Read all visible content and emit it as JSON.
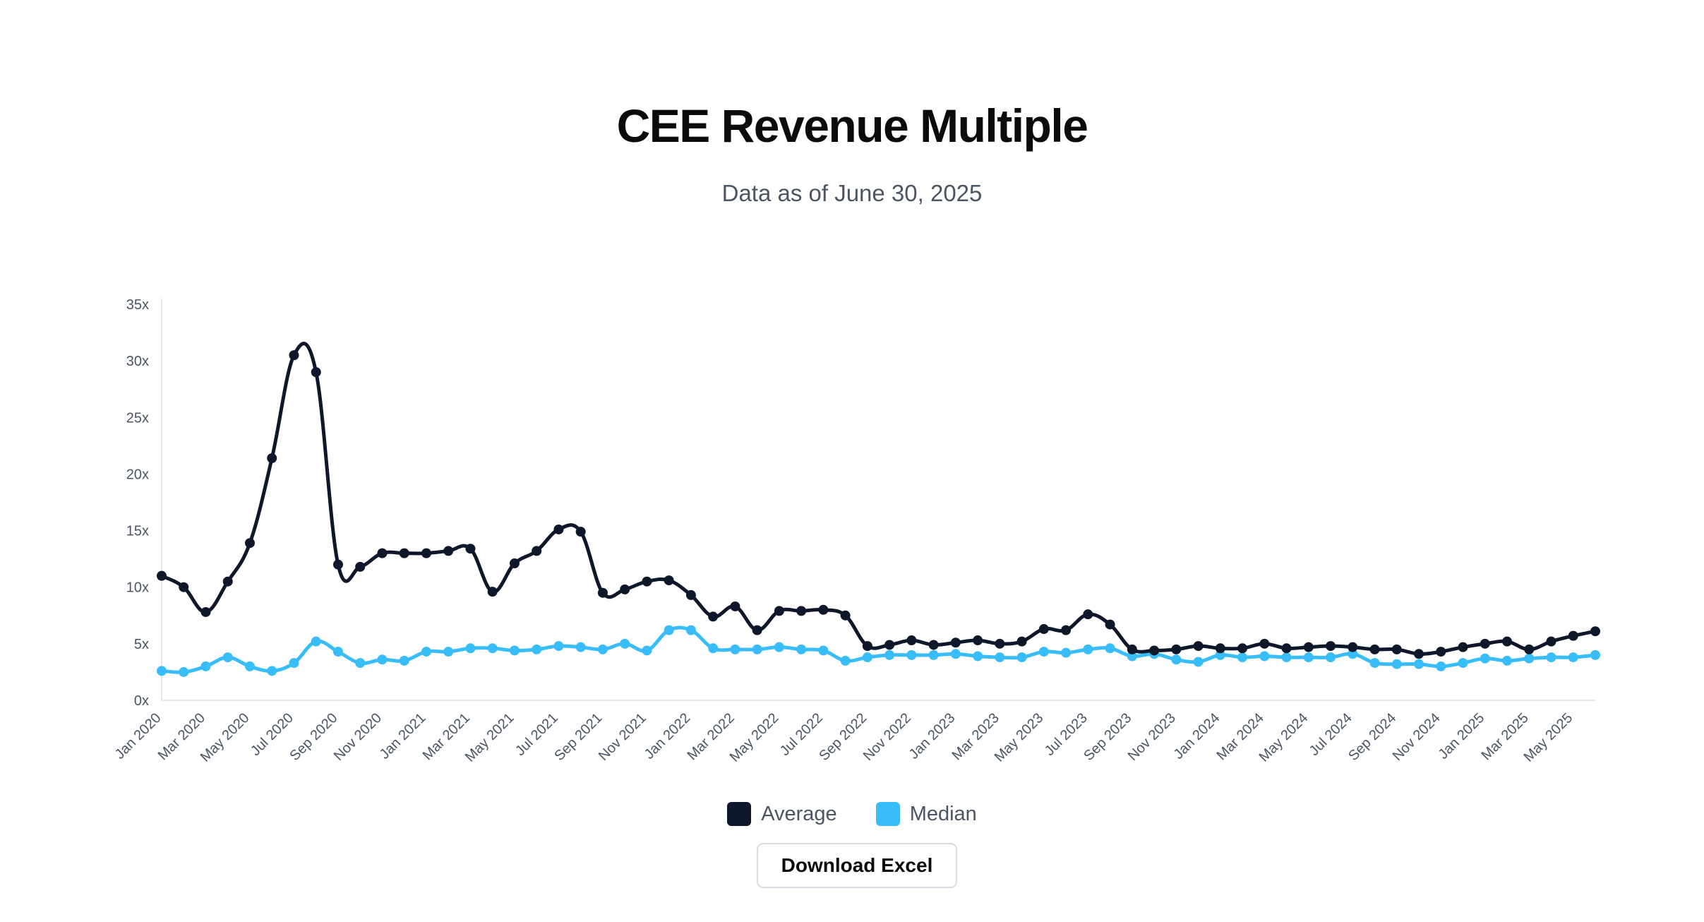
{
  "header": {
    "title": "CEE Revenue Multiple",
    "subtitle": "Data as of June 30, 2025"
  },
  "legend": {
    "average_label": "Average",
    "median_label": "Median"
  },
  "actions": {
    "download_label": "Download Excel"
  },
  "colors": {
    "average": "#0f172a",
    "median": "#38bdf8",
    "axis": "#d1d5db",
    "tick_text": "#4b5563"
  },
  "chart_data": {
    "type": "line",
    "title": "CEE Revenue Multiple",
    "subtitle": "Data as of June 30, 2025",
    "xlabel": "",
    "ylabel": "",
    "ylim": [
      0,
      35
    ],
    "yticks": [
      "0x",
      "5x",
      "10x",
      "15x",
      "20x",
      "25x",
      "30x",
      "35x"
    ],
    "grid": false,
    "legend_position": "bottom-center",
    "x": [
      "Jan 2020",
      "Feb 2020",
      "Mar 2020",
      "Apr 2020",
      "May 2020",
      "Jun 2020",
      "Jul 2020",
      "Aug 2020",
      "Sep 2020",
      "Oct 2020",
      "Nov 2020",
      "Dec 2020",
      "Jan 2021",
      "Feb 2021",
      "Mar 2021",
      "Apr 2021",
      "May 2021",
      "Jun 2021",
      "Jul 2021",
      "Aug 2021",
      "Sep 2021",
      "Oct 2021",
      "Nov 2021",
      "Dec 2021",
      "Jan 2022",
      "Feb 2022",
      "Mar 2022",
      "Apr 2022",
      "May 2022",
      "Jun 2022",
      "Jul 2022",
      "Aug 2022",
      "Sep 2022",
      "Oct 2022",
      "Nov 2022",
      "Dec 2022",
      "Jan 2023",
      "Feb 2023",
      "Mar 2023",
      "Apr 2023",
      "May 2023",
      "Jun 2023",
      "Jul 2023",
      "Aug 2023",
      "Sep 2023",
      "Oct 2023",
      "Nov 2023",
      "Dec 2023",
      "Jan 2024",
      "Feb 2024",
      "Mar 2024",
      "Apr 2024",
      "May 2024",
      "Jun 2024",
      "Jul 2024",
      "Aug 2024",
      "Sep 2024",
      "Oct 2024",
      "Nov 2024",
      "Dec 2024",
      "Jan 2025",
      "Feb 2025",
      "Mar 2025",
      "Apr 2025",
      "May 2025",
      "Jun 2025"
    ],
    "xtick_labels": [
      "Jan 2020",
      "Mar 2020",
      "May 2020",
      "Jul 2020",
      "Sep 2020",
      "Nov 2020",
      "Jan 2021",
      "Mar 2021",
      "May 2021",
      "Jul 2021",
      "Sep 2021",
      "Nov 2021",
      "Jan 2022",
      "Mar 2022",
      "May 2022",
      "Jul 2022",
      "Sep 2022",
      "Nov 2022",
      "Jan 2023",
      "Mar 2023",
      "May 2023",
      "Jul 2023",
      "Sep 2023",
      "Nov 2023",
      "Jan 2024",
      "Mar 2024",
      "May 2024",
      "Jul 2024",
      "Sep 2024",
      "Nov 2024",
      "Jan 2025",
      "Mar 2025",
      "May 2025"
    ],
    "series": [
      {
        "name": "Average",
        "color": "#0f172a",
        "values": [
          11.0,
          10.0,
          7.8,
          10.5,
          13.9,
          21.4,
          30.5,
          29.0,
          12.0,
          11.8,
          13.0,
          13.0,
          13.0,
          13.2,
          13.4,
          9.6,
          12.1,
          13.2,
          15.1,
          14.9,
          9.5,
          9.8,
          10.5,
          10.6,
          9.3,
          7.4,
          8.3,
          6.2,
          7.9,
          7.9,
          8.0,
          7.5,
          4.8,
          4.9,
          5.3,
          4.9,
          5.1,
          5.3,
          5.0,
          5.2,
          6.3,
          6.2,
          7.6,
          6.7,
          4.5,
          4.4,
          4.5,
          4.8,
          4.6,
          4.6,
          5.0,
          4.6,
          4.7,
          4.8,
          4.7,
          4.5,
          4.5,
          4.1,
          4.3,
          4.7,
          5.0,
          5.2,
          4.5,
          5.2,
          5.7,
          6.1
        ]
      },
      {
        "name": "Median",
        "color": "#38bdf8",
        "values": [
          2.6,
          2.5,
          3.0,
          3.8,
          3.0,
          2.6,
          3.3,
          5.2,
          4.3,
          3.3,
          3.6,
          3.5,
          4.3,
          4.3,
          4.6,
          4.6,
          4.4,
          4.5,
          4.8,
          4.7,
          4.5,
          5.0,
          4.4,
          6.2,
          6.2,
          4.6,
          4.5,
          4.5,
          4.7,
          4.5,
          4.4,
          3.5,
          3.8,
          4.0,
          4.0,
          4.0,
          4.1,
          3.9,
          3.8,
          3.8,
          4.3,
          4.2,
          4.5,
          4.6,
          3.9,
          4.1,
          3.6,
          3.4,
          4.0,
          3.8,
          3.9,
          3.8,
          3.8,
          3.8,
          4.1,
          3.3,
          3.2,
          3.2,
          3.0,
          3.3,
          3.7,
          3.5,
          3.7,
          3.8,
          3.8,
          4.0
        ]
      }
    ]
  }
}
